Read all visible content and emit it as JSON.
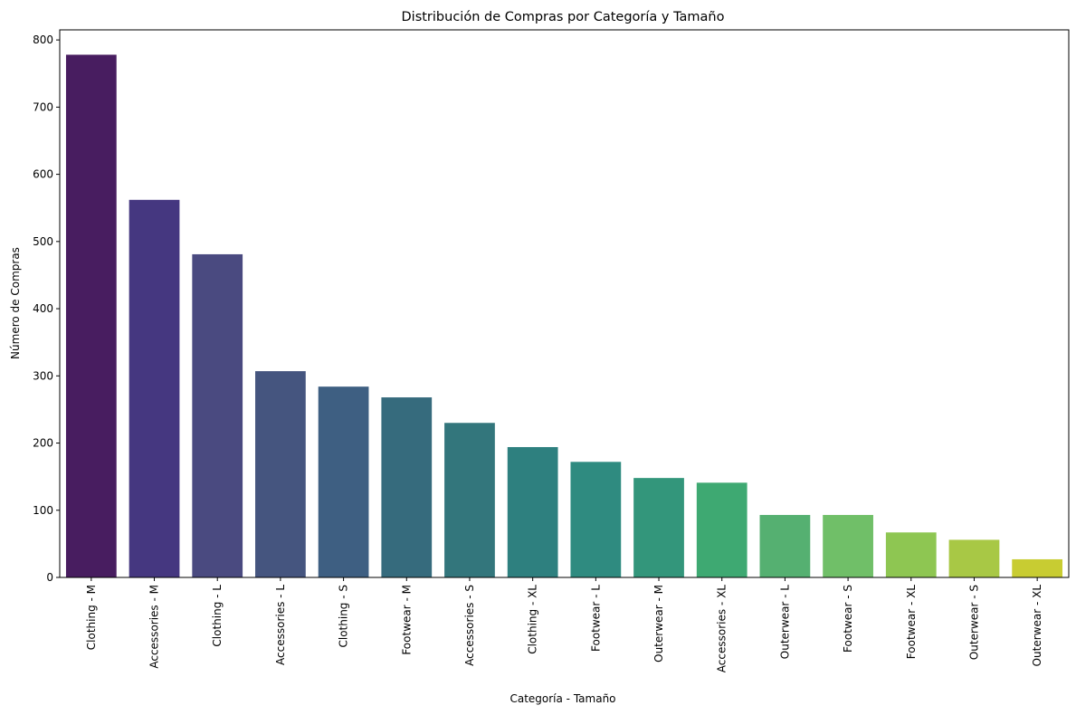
{
  "chart_data": {
    "type": "bar",
    "title": "Distribución de Compras por Categoría y Tamaño",
    "xlabel": "Categoría - Tamaño",
    "ylabel": "Número de Compras",
    "ylim": [
      0,
      815
    ],
    "yticks": [
      0,
      100,
      200,
      300,
      400,
      500,
      600,
      700,
      800
    ],
    "grid": false,
    "categories": [
      "Clothing - M",
      "Accessories - M",
      "Clothing - L",
      "Accessories - L",
      "Clothing - S",
      "Footwear - M",
      "Accessories - S",
      "Clothing - XL",
      "Footwear - L",
      "Outerwear - M",
      "Accessories - XL",
      "Outerwear - L",
      "Footwear - S",
      "Footwear - XL",
      "Outerwear - S",
      "Outerwear - XL"
    ],
    "values": [
      778,
      562,
      481,
      307,
      284,
      268,
      230,
      194,
      172,
      148,
      141,
      93,
      93,
      67,
      56,
      27
    ],
    "colors": [
      "#481d60",
      "#453780",
      "#4a4a80",
      "#45557f",
      "#3e5f82",
      "#366b7d",
      "#33767c",
      "#2e807f",
      "#2f8b80",
      "#33967b",
      "#3ea972",
      "#55b071",
      "#70bf68",
      "#8ec652",
      "#a8c845",
      "#c8cc32"
    ]
  }
}
